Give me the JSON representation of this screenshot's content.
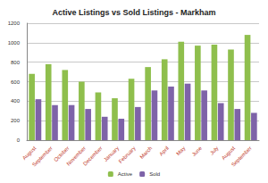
{
  "chart_data": {
    "type": "bar",
    "title": "Active Listings vs Sold Listings - Markham",
    "categories": [
      "August",
      "September",
      "October",
      "November",
      "December",
      "January",
      "February",
      "March",
      "April",
      "May",
      "June",
      "July",
      "August",
      "September"
    ],
    "series": [
      {
        "name": "Active",
        "color": "#8fbf4d",
        "values": [
          680,
          780,
          720,
          600,
          490,
          430,
          630,
          750,
          830,
          1010,
          970,
          980,
          930,
          1080
        ]
      },
      {
        "name": "Sold",
        "color": "#7e63a8",
        "values": [
          420,
          360,
          360,
          320,
          240,
          220,
          340,
          510,
          550,
          580,
          510,
          380,
          320,
          280
        ]
      }
    ],
    "ylim": [
      0,
      1200
    ],
    "yticks": [
      0,
      200,
      400,
      600,
      800,
      1000,
      1200
    ],
    "grid": true,
    "legend": "bottom"
  }
}
